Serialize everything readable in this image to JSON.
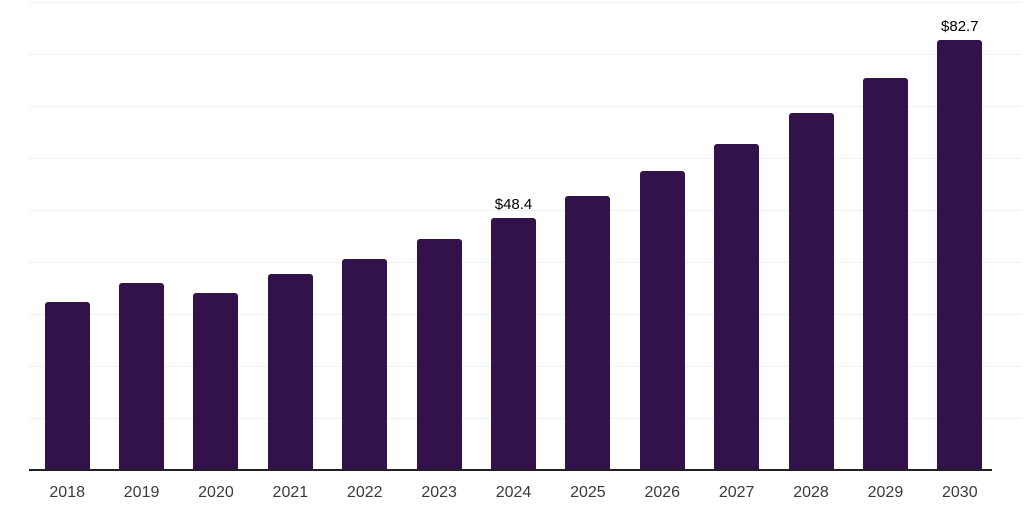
{
  "chart_data": {
    "type": "bar",
    "title": "",
    "categories": [
      "2018",
      "2019",
      "2020",
      "2021",
      "2022",
      "2023",
      "2024",
      "2025",
      "2026",
      "2027",
      "2028",
      "2029",
      "2030"
    ],
    "values": [
      32.3,
      35.9,
      34.0,
      37.7,
      40.6,
      44.5,
      48.4,
      52.7,
      57.5,
      62.7,
      68.6,
      75.3,
      82.7
    ],
    "data_labels": [
      {
        "category": "2024",
        "text": "$48.4"
      },
      {
        "category": "2030",
        "text": "$82.7"
      }
    ],
    "xlabel": "",
    "ylabel": "",
    "ylim": [
      0,
      90
    ],
    "gridline_step": 10,
    "grid": true,
    "legend": false,
    "colors": {
      "bar": "#33124C",
      "gridline": "#f0f0f0",
      "axis": "#212121",
      "tick_text": "#3a3a3a",
      "data_label_text": "#000000",
      "background": "#ffffff"
    }
  }
}
